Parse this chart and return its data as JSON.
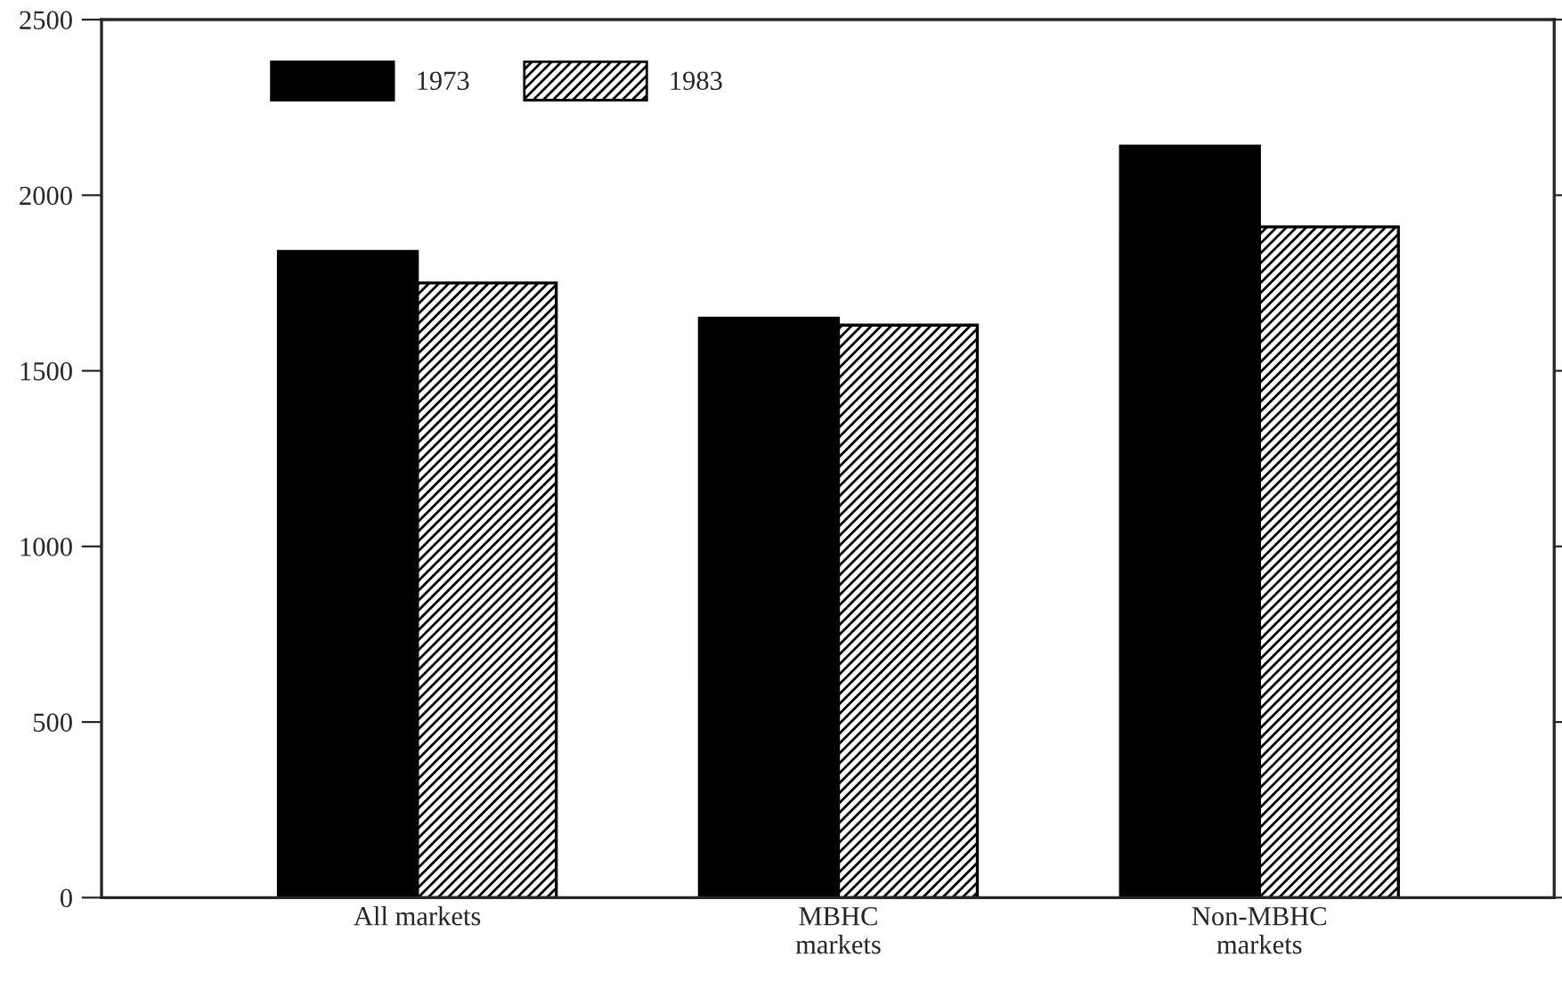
{
  "chart_data": {
    "type": "bar",
    "categories": [
      "All markets",
      "MBHC\nmarkets",
      "Non-MBHC\nmarkets"
    ],
    "series": [
      {
        "name": "1973",
        "color": "#000000",
        "values": [
          1840,
          1650,
          2140
        ]
      },
      {
        "name": "1983",
        "color": "#000000",
        "values": [
          1750,
          1630,
          1910
        ]
      }
    ],
    "ylim": [
      0,
      2500
    ],
    "yticks": [
      0,
      500,
      1000,
      1500,
      2000,
      2500
    ],
    "grid": false,
    "legend": "top left"
  }
}
